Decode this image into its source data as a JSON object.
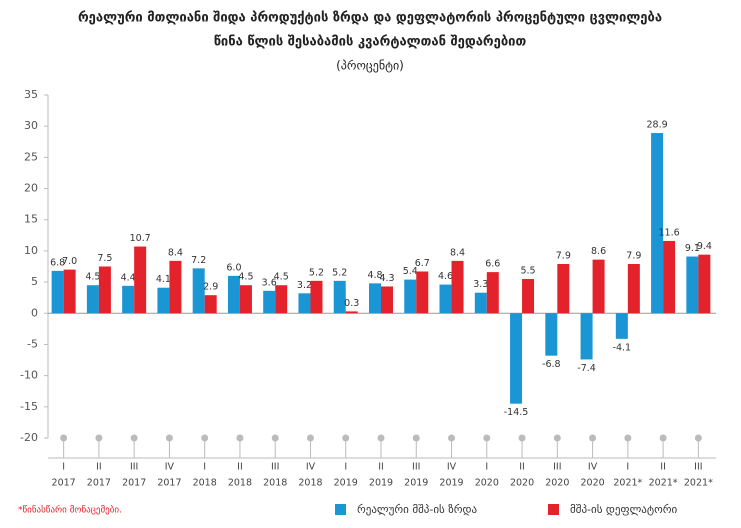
{
  "chart_data": {
    "type": "bar",
    "title": "რეალური მთლიანი შიდა პროდუქტის ზრდა და დეფლატორის პროცენტული ცვლილება",
    "title_line2": "წინა წლის შესაბამის კვარტალთან შედარებით",
    "subtitle": "(პროცენტი)",
    "categories": [
      [
        "I",
        "2017"
      ],
      [
        "II",
        "2017"
      ],
      [
        "III",
        "2017"
      ],
      [
        "IV",
        "2017"
      ],
      [
        "I",
        "2018"
      ],
      [
        "II",
        "2018"
      ],
      [
        "III",
        "2018"
      ],
      [
        "IV",
        "2018"
      ],
      [
        "I",
        "2019"
      ],
      [
        "II",
        "2019"
      ],
      [
        "III",
        "2019"
      ],
      [
        "IV",
        "2019"
      ],
      [
        "I",
        "2020"
      ],
      [
        "II",
        "2020"
      ],
      [
        "III",
        "2020"
      ],
      [
        "IV",
        "2020"
      ],
      [
        "I",
        "2021*"
      ],
      [
        "II",
        "2021*"
      ],
      [
        "III",
        "2021*"
      ]
    ],
    "series": [
      {
        "name": "რეალური მშპ-ის ზრდა",
        "color": "#1a96d4",
        "values": [
          6.8,
          4.5,
          4.4,
          4.1,
          7.2,
          6.0,
          3.6,
          3.2,
          5.2,
          4.8,
          5.4,
          4.6,
          3.3,
          -14.5,
          -6.8,
          -7.4,
          -4.1,
          28.9,
          9.1
        ],
        "value_labels": [
          "6.8",
          "4.5",
          "4.4",
          "4.1",
          "7.2",
          "6.0",
          "3.6",
          "3.2",
          "5.2",
          "4.8",
          "5.4",
          "4.6",
          "3.3",
          "-14.5",
          "-6.8",
          "-7.4",
          "-4.1",
          "28.9",
          "9.1"
        ]
      },
      {
        "name": "მშპ-ის დეფლატორი",
        "color": "#e4222b",
        "values": [
          7.0,
          7.5,
          10.7,
          8.4,
          2.9,
          4.5,
          4.5,
          5.2,
          0.3,
          4.3,
          6.7,
          8.4,
          6.6,
          5.5,
          7.9,
          8.6,
          7.9,
          11.6,
          9.4
        ],
        "value_labels": [
          "7.0",
          "7.5",
          "10.7",
          "8.4",
          "2.9",
          "4.5",
          "4.5",
          "5.2",
          "0.3",
          "4.3",
          "6.7",
          "8.4",
          "6.6",
          "5.5",
          "7.9",
          "8.6",
          "7.9",
          "11.6",
          "9.4"
        ]
      }
    ],
    "ylim": [
      -20,
      35
    ],
    "yticks": [
      35,
      30,
      25,
      20,
      15,
      10,
      5,
      0,
      -5,
      -10,
      -15,
      -20
    ],
    "footnote": "*წინასწარი მონაცემები."
  }
}
